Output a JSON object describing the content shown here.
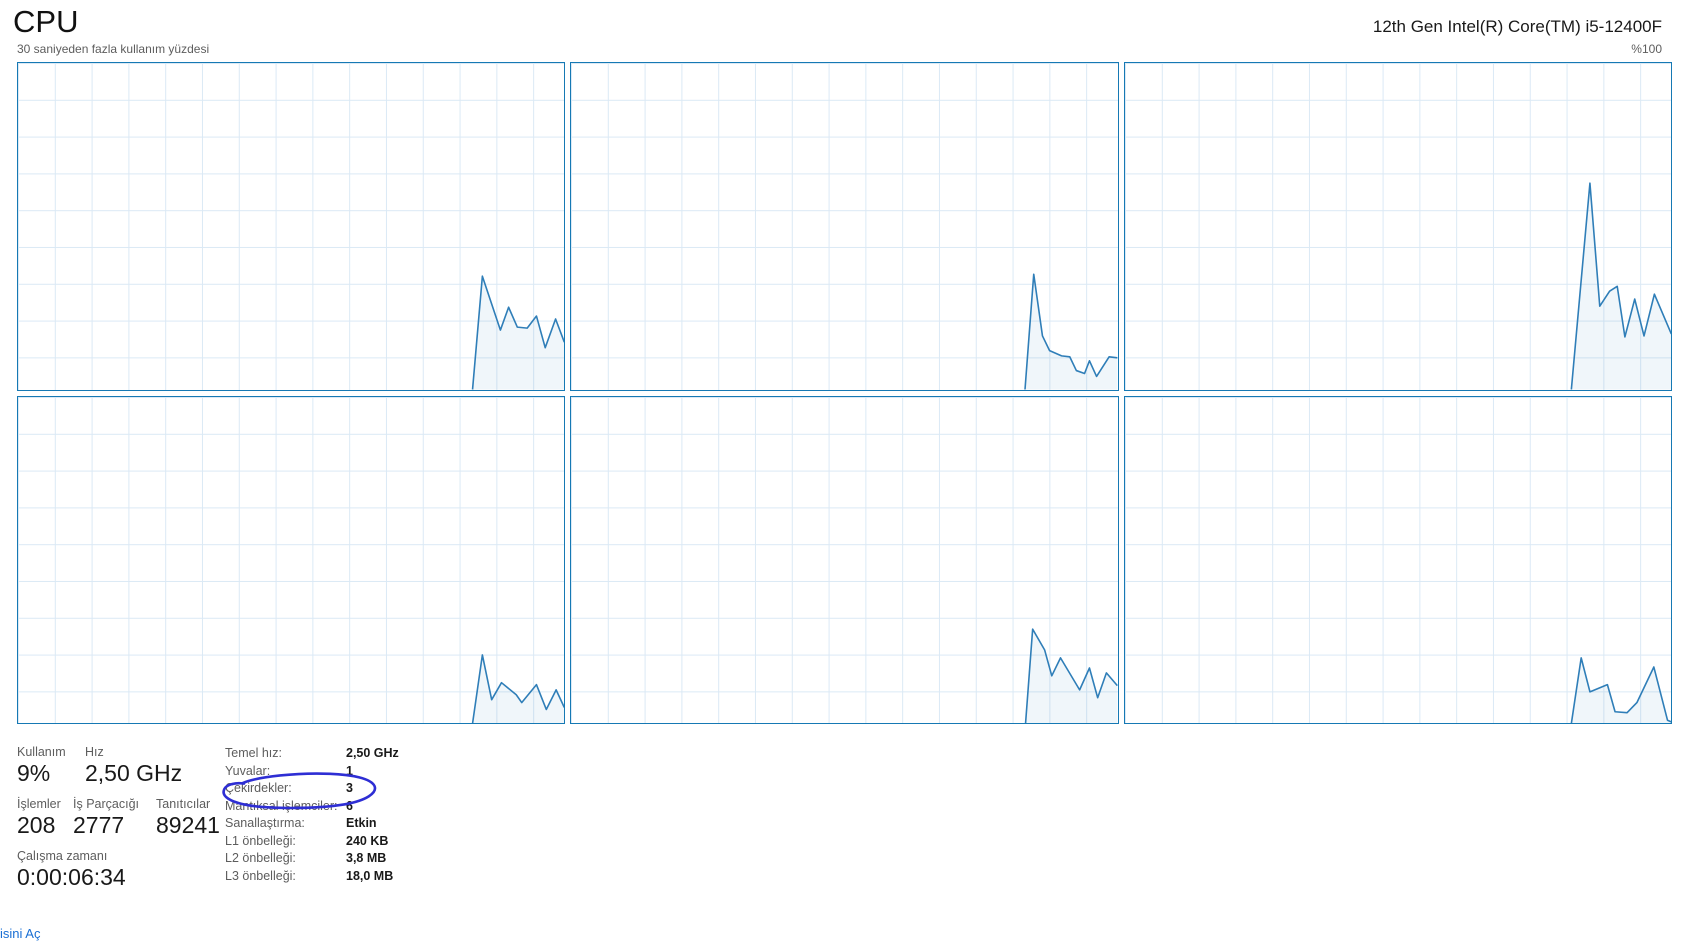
{
  "header": {
    "title": "CPU",
    "cpu_name": "12th Gen Intel(R) Core(TM) i5-12400F"
  },
  "chart_header": {
    "left": "30 saniyeden fazla kullanım yüzdesi",
    "right": "%100"
  },
  "chart_data": {
    "type": "area",
    "title": "30 saniyeden fazla kullanım yüzdesi",
    "ylabel": "%100",
    "ylim": [
      0,
      100
    ],
    "grid": true,
    "layout": "2x3 logical-processor panels",
    "colors": {
      "line": "#2f7eb8",
      "border": "#1679b4",
      "grid": "#dbe9f5",
      "fill": "rgba(47,126,184,0.07)"
    },
    "panels": [
      {
        "name": "logical-processor-1",
        "points": [
          [
            83.2,
            0
          ],
          [
            85.0,
            34.7
          ],
          [
            88.3,
            18.2
          ],
          [
            89.8,
            25.2
          ],
          [
            91.4,
            19.1
          ],
          [
            93.2,
            18.8
          ],
          [
            94.9,
            22.5
          ],
          [
            96.5,
            12.8
          ],
          [
            98.4,
            21.6
          ],
          [
            100,
            14.5
          ]
        ]
      },
      {
        "name": "logical-processor-2",
        "points": [
          [
            83.1,
            0
          ],
          [
            84.7,
            35.3
          ],
          [
            86.3,
            16.4
          ],
          [
            87.6,
            11.9
          ],
          [
            89.8,
            10.3
          ],
          [
            91.3,
            10.0
          ],
          [
            92.5,
            5.8
          ],
          [
            94.0,
            4.9
          ],
          [
            94.9,
            8.8
          ],
          [
            96.2,
            4.0
          ],
          [
            98.5,
            10.0
          ],
          [
            100,
            9.7
          ]
        ]
      },
      {
        "name": "logical-processor-3",
        "points": [
          [
            81.7,
            0
          ],
          [
            85.1,
            63.2
          ],
          [
            86.9,
            25.5
          ],
          [
            88.7,
            30.1
          ],
          [
            90.1,
            31.6
          ],
          [
            91.5,
            16.1
          ],
          [
            93.3,
            27.7
          ],
          [
            95.0,
            16.4
          ],
          [
            96.9,
            29.2
          ],
          [
            100,
            17.0
          ]
        ]
      },
      {
        "name": "logical-processor-4",
        "points": [
          [
            83.2,
            0
          ],
          [
            85.0,
            21.0
          ],
          [
            86.7,
            7.3
          ],
          [
            88.5,
            12.5
          ],
          [
            91.2,
            8.8
          ],
          [
            92.2,
            6.4
          ],
          [
            94.9,
            11.9
          ],
          [
            96.7,
            4.3
          ],
          [
            98.5,
            10.3
          ],
          [
            100,
            4.9
          ]
        ]
      },
      {
        "name": "logical-processor-5",
        "points": [
          [
            83.2,
            0
          ],
          [
            84.5,
            28.9
          ],
          [
            86.7,
            22.5
          ],
          [
            88.0,
            14.6
          ],
          [
            89.6,
            20.1
          ],
          [
            93.1,
            10.3
          ],
          [
            94.9,
            17.0
          ],
          [
            96.4,
            7.9
          ],
          [
            98.0,
            15.5
          ],
          [
            100,
            11.6
          ]
        ]
      },
      {
        "name": "logical-processor-6",
        "points": [
          [
            81.7,
            0
          ],
          [
            83.5,
            20.1
          ],
          [
            85.1,
            9.7
          ],
          [
            88.3,
            11.9
          ],
          [
            89.7,
            3.6
          ],
          [
            91.9,
            3.3
          ],
          [
            93.7,
            6.4
          ],
          [
            96.8,
            17.3
          ],
          [
            99.3,
            1.0
          ],
          [
            100,
            0.5
          ]
        ]
      }
    ]
  },
  "stats": {
    "kullanim": {
      "label": "Kullanım",
      "value": "9%"
    },
    "hiz": {
      "label": "Hız",
      "value": "2,50 GHz"
    },
    "islemler": {
      "label": "İşlemler",
      "value": "208"
    },
    "is_parcacigi": {
      "label": "İş Parçacığı",
      "value": "2777"
    },
    "taniticilar": {
      "label": "Tanıtıcılar",
      "value": "89241"
    },
    "calisma_zamani": {
      "label": "Çalışma zamanı",
      "value": "0:00:06:34"
    },
    "details": [
      {
        "label": "Temel hız:",
        "value": "2,50 GHz"
      },
      {
        "label": "Yuvalar:",
        "value": "1"
      },
      {
        "label": "Çekirdekler:",
        "value": "3"
      },
      {
        "label": "Mantıksal işlemciler:",
        "value": "6"
      },
      {
        "label": "Sanallaştırma:",
        "value": "Etkin"
      },
      {
        "label": "L1 önbelleği:",
        "value": "240 KB"
      },
      {
        "label": "L2 önbelleği:",
        "value": "3,8 MB"
      },
      {
        "label": "L3 önbelleği:",
        "value": "18,0 MB"
      }
    ]
  },
  "annotation": {
    "target": "Çekirdekler: 3",
    "shape": "hand-drawn ellipse",
    "color": "#2e2ed4"
  },
  "footer": {
    "link": "isini Aç"
  }
}
